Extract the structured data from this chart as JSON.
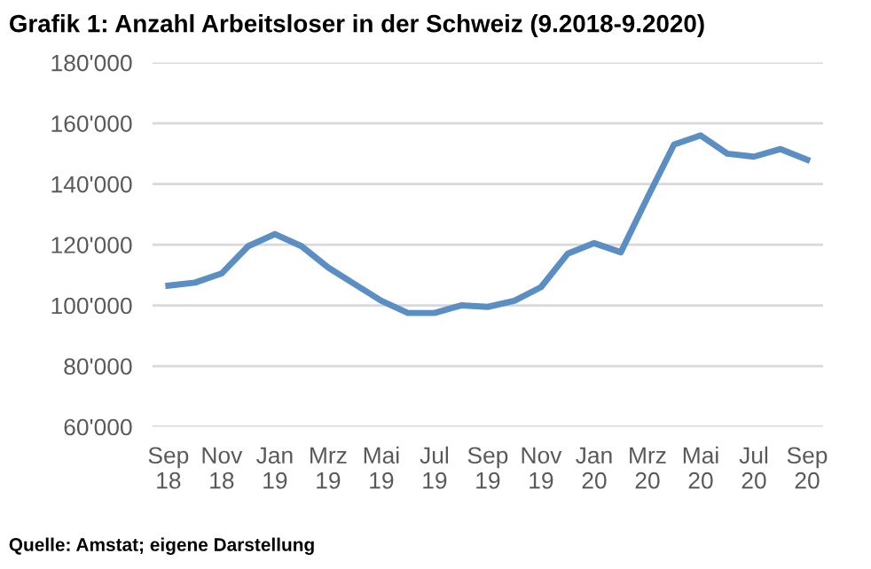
{
  "chart_data": {
    "type": "line",
    "title": "Grafik 1: Anzahl Arbeitsloser in der Schweiz (9.2018-9.2020)",
    "categories": [
      "Sep\n18",
      null,
      "Nov\n18",
      null,
      "Jan\n19",
      null,
      "Mrz\n19",
      null,
      "Mai\n19",
      null,
      "Jul\n19",
      null,
      "Sep\n19",
      null,
      "Nov\n19",
      null,
      "Jan\n20",
      null,
      "Mrz\n20",
      null,
      "Mai\n20",
      null,
      "Jul\n20",
      null,
      "Sep\n20"
    ],
    "series": [
      {
        "color": "#5b8fc4",
        "values": [
          106500,
          107500,
          110500,
          119500,
          123500,
          119500,
          112500,
          107000,
          101500,
          97500,
          97500,
          100000,
          99500,
          101500,
          106000,
          117000,
          120500,
          117500,
          135500,
          153000,
          156000,
          150000,
          149000,
          151500,
          148000
        ]
      }
    ],
    "ylim": [
      60000,
      180000
    ],
    "yticks": [
      {
        "value": 60000,
        "label": "60'000"
      },
      {
        "value": 80000,
        "label": "80'000"
      },
      {
        "value": 100000,
        "label": "100'000"
      },
      {
        "value": 120000,
        "label": "120'000"
      },
      {
        "value": 140000,
        "label": "140'000"
      },
      {
        "value": 160000,
        "label": "160'000"
      },
      {
        "value": 180000,
        "label": "180'000"
      }
    ],
    "grid": "y",
    "legend": false,
    "marker": "none",
    "line_style": "solid",
    "annotations": [
      "Quelle: Amstat; eigene Darstellung"
    ]
  }
}
